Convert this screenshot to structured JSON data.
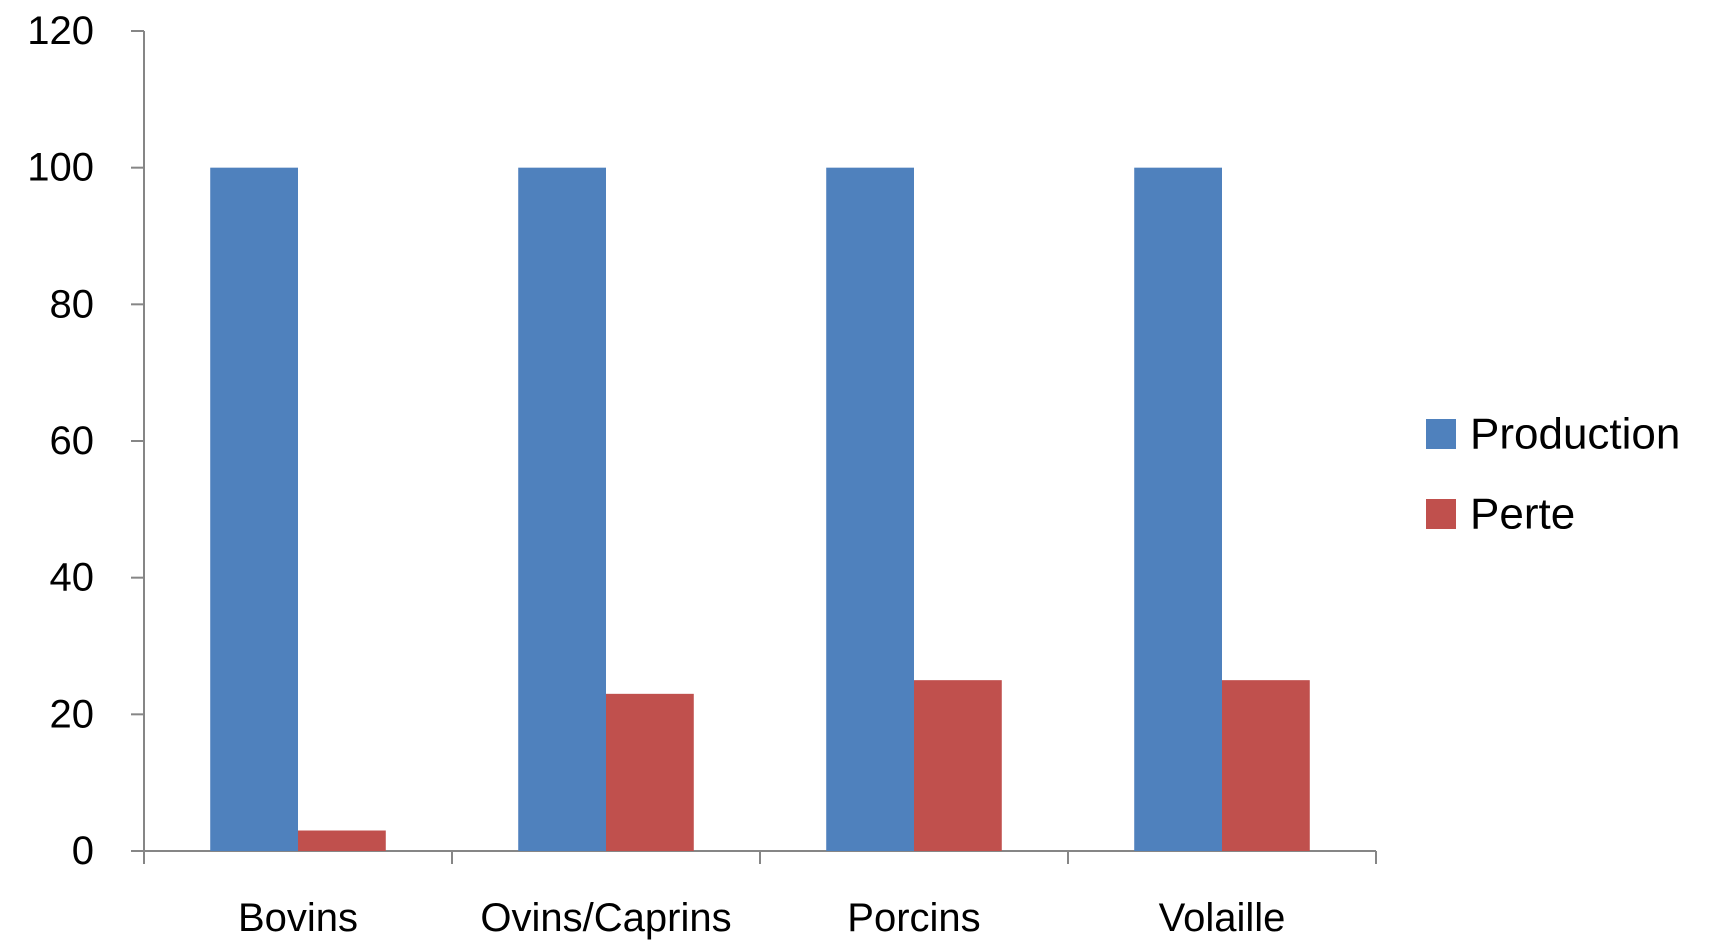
{
  "chart_data": {
    "type": "bar",
    "title": "",
    "xlabel": "",
    "ylabel": "",
    "categories": [
      "Bovins",
      "Ovins/Caprins",
      "Porcins",
      "Volaille"
    ],
    "series": [
      {
        "name": "Production",
        "color": "#4f81bd",
        "values": [
          100,
          100,
          100,
          100
        ]
      },
      {
        "name": "Perte",
        "color": "#c0504d",
        "values": [
          3,
          23,
          25,
          25
        ]
      }
    ],
    "ylim": [
      0,
      120
    ],
    "yticks": [
      "0",
      "20",
      "40",
      "60",
      "80",
      "100",
      "120"
    ],
    "grid": false,
    "legend": "right"
  }
}
